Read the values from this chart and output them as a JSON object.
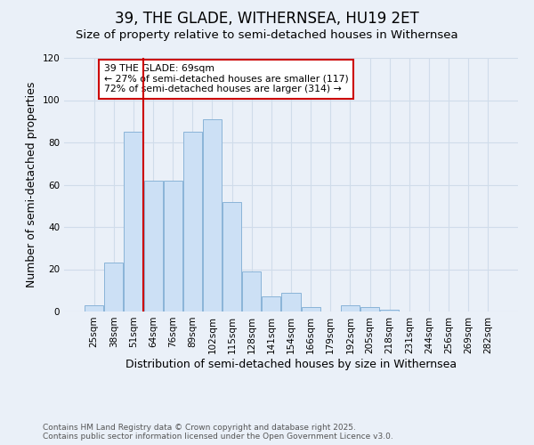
{
  "title": "39, THE GLADE, WITHERNSEA, HU19 2ET",
  "subtitle": "Size of property relative to semi-detached houses in Withernsea",
  "xlabel": "Distribution of semi-detached houses by size in Withernsea",
  "ylabel": "Number of semi-detached properties",
  "categories": [
    "25sqm",
    "38sqm",
    "51sqm",
    "64sqm",
    "76sqm",
    "89sqm",
    "102sqm",
    "115sqm",
    "128sqm",
    "141sqm",
    "154sqm",
    "166sqm",
    "179sqm",
    "192sqm",
    "205sqm",
    "218sqm",
    "231sqm",
    "244sqm",
    "256sqm",
    "269sqm",
    "282sqm"
  ],
  "bar_values": [
    3,
    23,
    85,
    62,
    62,
    85,
    91,
    52,
    19,
    7,
    9,
    2,
    0,
    3,
    2,
    1,
    0,
    0,
    0,
    0,
    0
  ],
  "bar_color": "#cce0f5",
  "bar_edge_color": "#8ab4d8",
  "grid_color": "#d0dcea",
  "background_color": "#eaf0f8",
  "ylim": [
    0,
    120
  ],
  "yticks": [
    0,
    20,
    40,
    60,
    80,
    100,
    120
  ],
  "property_label": "39 THE GLADE: 69sqm",
  "annotation_line1": "← 27% of semi-detached houses are smaller (117)",
  "annotation_line2": "72% of semi-detached houses are larger (314) →",
  "annotation_box_color": "#ffffff",
  "annotation_box_edge": "#cc0000",
  "vline_color": "#cc0000",
  "vline_bin": 3,
  "footer_line1": "Contains HM Land Registry data © Crown copyright and database right 2025.",
  "footer_line2": "Contains public sector information licensed under the Open Government Licence v3.0.",
  "title_fontsize": 12,
  "subtitle_fontsize": 9.5,
  "axis_label_fontsize": 9,
  "tick_fontsize": 7.5,
  "footer_fontsize": 6.5
}
